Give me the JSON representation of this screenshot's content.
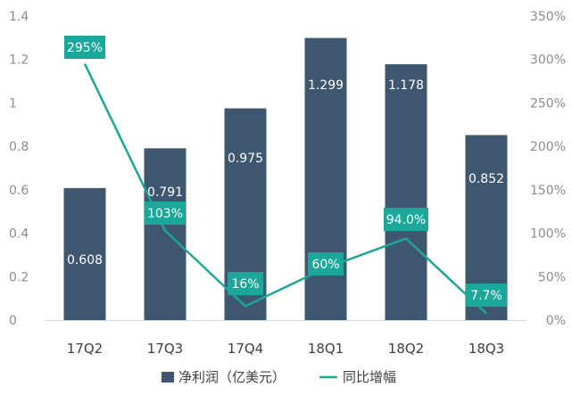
{
  "chart_data": {
    "type": "bar",
    "categories": [
      "17Q2",
      "17Q3",
      "17Q4",
      "18Q1",
      "18Q2",
      "18Q3"
    ],
    "series": [
      {
        "name": "净利润（亿美元）",
        "type": "bar",
        "axis": "left",
        "color": "#3e566f",
        "values": [
          0.608,
          0.791,
          0.975,
          1.299,
          1.178,
          0.852
        ],
        "labels": [
          "0.608",
          "0.791",
          "0.975",
          "1.299",
          "1.178",
          "0.852"
        ]
      },
      {
        "name": "同比增幅",
        "type": "line",
        "axis": "right",
        "color": "#1ba79a",
        "values": [
          295,
          103,
          16,
          60,
          94.0,
          7.7
        ],
        "labels": [
          "295%",
          "103%",
          "16%",
          "60%",
          "94.0%",
          "7.7%"
        ]
      }
    ],
    "y_left": {
      "min": 0,
      "max": 1.4,
      "ticks": [
        "0",
        "0.2",
        "0.4",
        "0.6",
        "0.8",
        "1",
        "1.2",
        "1.4"
      ]
    },
    "y_right": {
      "min": 0,
      "max": 350,
      "ticks": [
        "0%",
        "50%",
        "100%",
        "150%",
        "200%",
        "250%",
        "300%",
        "350%"
      ]
    },
    "grid": false,
    "legend_position": "bottom"
  }
}
